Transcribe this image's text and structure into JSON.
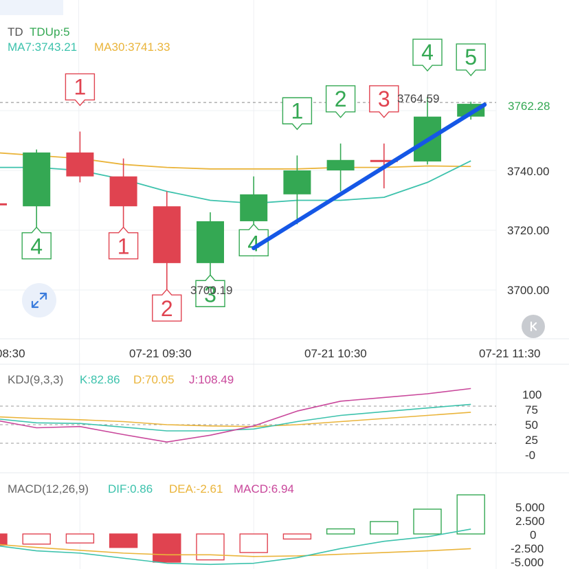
{
  "header": {
    "td_label": "TD",
    "td_value": "TDUp:5",
    "ma7": "MA7:3743.21",
    "ma30": "MA30:3741.33"
  },
  "kdj_header": {
    "name": "KDJ(9,3,3)",
    "k": "K:82.86",
    "d": "D:70.05",
    "j": "J:108.49"
  },
  "macd_header": {
    "name": "MACD(12,26,9)",
    "dif": "DIF:0.86",
    "dea": "DEA:-2.61",
    "macd": "MACD:6.94"
  },
  "colors": {
    "up": "#34a853",
    "down": "#e04350",
    "ma7": "#3cc2ac",
    "ma30": "#eab43a",
    "j": "#c9479b",
    "trend": "#1557e6",
    "grid": "#eef0f3",
    "axis_text": "#333333"
  },
  "icons": {
    "expand": "expand-icon",
    "collapse": "collapse-icon"
  },
  "chart_data": {
    "type": "candlestick",
    "price_axis": {
      "ticks": [
        3700,
        3720,
        3740
      ],
      "tick_labels": [
        "3700.00",
        "3720.00",
        "3740.00"
      ],
      "ylim": [
        3688,
        3780
      ]
    },
    "x_ticks": [
      "08:30",
      "07-21 09:30",
      "07-21 10:30",
      "07-21 11:30"
    ],
    "candles": [
      {
        "o": 3729,
        "h": 3729,
        "l": 3729,
        "c": 3728.5,
        "td": "",
        "td_pos": ""
      },
      {
        "o": 3728,
        "h": 3747,
        "l": 3721,
        "c": 3746,
        "td": "4",
        "td_pos": "below"
      },
      {
        "o": 3746,
        "h": 3753,
        "l": 3736,
        "c": 3738,
        "td": "1",
        "td_pos": "above"
      },
      {
        "o": 3738,
        "h": 3744,
        "l": 3721,
        "c": 3728,
        "td": "1",
        "td_pos": "below"
      },
      {
        "o": 3728,
        "h": 3733,
        "l": 3700.19,
        "c": 3709,
        "td": "2",
        "td_pos": "below"
      },
      {
        "o": 3709,
        "h": 3726,
        "l": 3705,
        "c": 3723,
        "td": "3",
        "td_pos": "below"
      },
      {
        "o": 3723,
        "h": 3738,
        "l": 3722,
        "c": 3732,
        "td": "4",
        "td_pos": "below"
      },
      {
        "o": 3732,
        "h": 3745,
        "l": 3722,
        "c": 3740,
        "td": "1",
        "td_pos": "above"
      },
      {
        "o": 3740,
        "h": 3749,
        "l": 3733,
        "c": 3743.5,
        "td": "2",
        "td_pos": "above"
      },
      {
        "o": 3743.5,
        "h": 3749,
        "l": 3734,
        "c": 3743,
        "td": "3",
        "td_pos": "above"
      },
      {
        "o": 3743,
        "h": 3764.59,
        "l": 3742,
        "c": 3758,
        "td": "4",
        "td_pos": "above"
      },
      {
        "o": 3758,
        "h": 3763,
        "l": 3757,
        "c": 3762.28,
        "td": "5",
        "td_pos": "above"
      }
    ],
    "ma7": [
      3741,
      3741,
      3740,
      3737,
      3733,
      3730,
      3729,
      3730,
      3730,
      3731,
      3736,
      3743.21
    ],
    "ma30": [
      3746,
      3745,
      3744,
      3742,
      3741,
      3740.5,
      3740.5,
      3740.5,
      3741,
      3741,
      3741.5,
      3741.33
    ],
    "annotations": {
      "high": "3764.59",
      "low": "3700.19",
      "current_price": "3762.28",
      "trendline": {
        "from": [
          6,
          3714
        ],
        "to": [
          11,
          3762
        ]
      }
    },
    "kdj": {
      "axis_labels": [
        "100",
        "75",
        "50",
        "25",
        "-0"
      ],
      "dashed_levels": [
        80,
        50,
        20
      ],
      "ylim": [
        -5,
        110
      ],
      "k": [
        60,
        53,
        52,
        46,
        40,
        40,
        43,
        55,
        65,
        71,
        77,
        82.86
      ],
      "d": [
        63,
        60,
        58,
        55,
        50,
        48,
        47,
        50,
        55,
        60,
        65,
        70.05
      ],
      "j": [
        58,
        45,
        47,
        34,
        22,
        33,
        48,
        72,
        88,
        94,
        100,
        108.49
      ]
    },
    "macd": {
      "axis_labels": [
        "5.000",
        "2.500",
        "0",
        "-2.500",
        "-5.000"
      ],
      "ylim": [
        -5.7,
        7.4
      ],
      "bars": [
        -2.0,
        -1.8,
        -1.6,
        -2.4,
        -5.0,
        -4.6,
        -3.3,
        -0.9,
        0.9,
        2.2,
        4.4,
        6.94
      ],
      "dif": [
        -2.0,
        -3.0,
        -3.4,
        -4.3,
        -5.2,
        -5.4,
        -5.2,
        -4.2,
        -2.6,
        -1.3,
        -0.5,
        0.86
      ],
      "dea": [
        -1.8,
        -2.4,
        -2.9,
        -3.4,
        -3.7,
        -3.7,
        -4.0,
        -3.9,
        -3.6,
        -3.3,
        -3.0,
        -2.61
      ]
    }
  }
}
